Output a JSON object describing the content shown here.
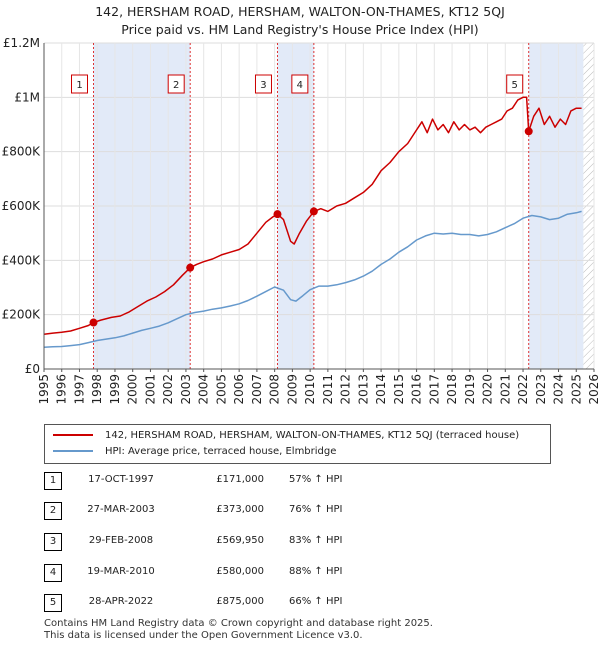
{
  "title": {
    "line1": "142, HERSHAM ROAD, HERSHAM, WALTON-ON-THAMES, KT12 5QJ",
    "line2": "Price paid vs. HM Land Registry's House Price Index (HPI)"
  },
  "chart_data": {
    "type": "line",
    "title": "142, HERSHAM ROAD, HERSHAM, WALTON-ON-THAMES, KT12 5QJ — Price paid vs. HM Land Registry's House Price Index (HPI)",
    "xlabel": "",
    "ylabel": "",
    "xlim": [
      1995,
      2026
    ],
    "ylim": [
      0,
      1200000
    ],
    "x_ticks": [
      "1995",
      "1996",
      "1997",
      "1998",
      "1999",
      "2000",
      "2001",
      "2002",
      "2003",
      "2004",
      "2005",
      "2006",
      "2007",
      "2008",
      "2009",
      "2010",
      "2011",
      "2012",
      "2013",
      "2014",
      "2015",
      "2016",
      "2017",
      "2018",
      "2019",
      "2020",
      "2021",
      "2022",
      "2023",
      "2024",
      "2025",
      "2026"
    ],
    "y_ticks": [
      {
        "value": 0,
        "label": "£0"
      },
      {
        "value": 200000,
        "label": "£200K"
      },
      {
        "value": 400000,
        "label": "£400K"
      },
      {
        "value": 600000,
        "label": "£600K"
      },
      {
        "value": 800000,
        "label": "£800K"
      },
      {
        "value": 1000000,
        "label": "£1M"
      },
      {
        "value": 1200000,
        "label": "£1.2M"
      }
    ],
    "grid": true,
    "series": [
      {
        "name": "142, HERSHAM ROAD, HERSHAM, WALTON-ON-THAMES, KT12 5QJ (terraced house)",
        "color": "#cc0000",
        "points": [
          [
            1995.0,
            128000
          ],
          [
            1995.5,
            132000
          ],
          [
            1996.0,
            135000
          ],
          [
            1996.5,
            140000
          ],
          [
            1997.0,
            150000
          ],
          [
            1997.5,
            160000
          ],
          [
            1997.79,
            171000
          ],
          [
            1998.2,
            180000
          ],
          [
            1998.8,
            190000
          ],
          [
            1999.3,
            195000
          ],
          [
            1999.8,
            210000
          ],
          [
            2000.3,
            230000
          ],
          [
            2000.8,
            250000
          ],
          [
            2001.3,
            265000
          ],
          [
            2001.8,
            285000
          ],
          [
            2002.3,
            310000
          ],
          [
            2002.8,
            345000
          ],
          [
            2003.24,
            373000
          ],
          [
            2003.6,
            385000
          ],
          [
            2004.0,
            395000
          ],
          [
            2004.5,
            405000
          ],
          [
            2005.0,
            420000
          ],
          [
            2005.5,
            430000
          ],
          [
            2006.0,
            440000
          ],
          [
            2006.5,
            460000
          ],
          [
            2007.0,
            500000
          ],
          [
            2007.5,
            540000
          ],
          [
            2007.9,
            560000
          ],
          [
            2008.16,
            569950
          ],
          [
            2008.5,
            550000
          ],
          [
            2008.9,
            470000
          ],
          [
            2009.1,
            460000
          ],
          [
            2009.4,
            500000
          ],
          [
            2009.8,
            545000
          ],
          [
            2010.21,
            580000
          ],
          [
            2010.6,
            590000
          ],
          [
            2011.0,
            580000
          ],
          [
            2011.5,
            600000
          ],
          [
            2012.0,
            610000
          ],
          [
            2012.5,
            630000
          ],
          [
            2013.0,
            650000
          ],
          [
            2013.5,
            680000
          ],
          [
            2014.0,
            730000
          ],
          [
            2014.5,
            760000
          ],
          [
            2015.0,
            800000
          ],
          [
            2015.5,
            830000
          ],
          [
            2016.0,
            880000
          ],
          [
            2016.3,
            910000
          ],
          [
            2016.6,
            870000
          ],
          [
            2016.9,
            920000
          ],
          [
            2017.2,
            880000
          ],
          [
            2017.5,
            900000
          ],
          [
            2017.8,
            870000
          ],
          [
            2018.1,
            910000
          ],
          [
            2018.4,
            880000
          ],
          [
            2018.7,
            900000
          ],
          [
            2019.0,
            880000
          ],
          [
            2019.3,
            890000
          ],
          [
            2019.6,
            870000
          ],
          [
            2019.9,
            890000
          ],
          [
            2020.2,
            900000
          ],
          [
            2020.5,
            910000
          ],
          [
            2020.8,
            920000
          ],
          [
            2021.1,
            950000
          ],
          [
            2021.4,
            960000
          ],
          [
            2021.7,
            990000
          ],
          [
            2022.0,
            1000000
          ],
          [
            2022.2,
            1000000
          ],
          [
            2022.32,
            875000
          ],
          [
            2022.6,
            930000
          ],
          [
            2022.9,
            960000
          ],
          [
            2023.2,
            900000
          ],
          [
            2023.5,
            930000
          ],
          [
            2023.8,
            890000
          ],
          [
            2024.1,
            920000
          ],
          [
            2024.4,
            900000
          ],
          [
            2024.7,
            950000
          ],
          [
            2025.0,
            960000
          ],
          [
            2025.3,
            960000
          ]
        ]
      },
      {
        "name": "HPI: Average price, terraced house, Elmbridge",
        "color": "#6699cc",
        "points": [
          [
            1995.0,
            80000
          ],
          [
            1995.5,
            82000
          ],
          [
            1996.0,
            83000
          ],
          [
            1996.5,
            86000
          ],
          [
            1997.0,
            90000
          ],
          [
            1997.5,
            97000
          ],
          [
            1998.0,
            105000
          ],
          [
            1998.5,
            110000
          ],
          [
            1999.0,
            115000
          ],
          [
            1999.5,
            122000
          ],
          [
            2000.0,
            132000
          ],
          [
            2000.5,
            142000
          ],
          [
            2001.0,
            150000
          ],
          [
            2001.5,
            158000
          ],
          [
            2002.0,
            170000
          ],
          [
            2002.5,
            185000
          ],
          [
            2003.0,
            200000
          ],
          [
            2003.5,
            208000
          ],
          [
            2004.0,
            213000
          ],
          [
            2004.5,
            220000
          ],
          [
            2005.0,
            225000
          ],
          [
            2005.5,
            232000
          ],
          [
            2006.0,
            240000
          ],
          [
            2006.5,
            252000
          ],
          [
            2007.0,
            268000
          ],
          [
            2007.5,
            285000
          ],
          [
            2008.0,
            302000
          ],
          [
            2008.5,
            290000
          ],
          [
            2008.9,
            255000
          ],
          [
            2009.2,
            250000
          ],
          [
            2009.6,
            270000
          ],
          [
            2010.0,
            292000
          ],
          [
            2010.5,
            305000
          ],
          [
            2011.0,
            305000
          ],
          [
            2011.5,
            310000
          ],
          [
            2012.0,
            318000
          ],
          [
            2012.5,
            328000
          ],
          [
            2013.0,
            342000
          ],
          [
            2013.5,
            360000
          ],
          [
            2014.0,
            385000
          ],
          [
            2014.5,
            405000
          ],
          [
            2015.0,
            430000
          ],
          [
            2015.5,
            450000
          ],
          [
            2016.0,
            475000
          ],
          [
            2016.5,
            490000
          ],
          [
            2017.0,
            500000
          ],
          [
            2017.5,
            497000
          ],
          [
            2018.0,
            500000
          ],
          [
            2018.5,
            495000
          ],
          [
            2019.0,
            495000
          ],
          [
            2019.5,
            490000
          ],
          [
            2020.0,
            495000
          ],
          [
            2020.5,
            505000
          ],
          [
            2021.0,
            520000
          ],
          [
            2021.5,
            535000
          ],
          [
            2022.0,
            555000
          ],
          [
            2022.5,
            565000
          ],
          [
            2023.0,
            560000
          ],
          [
            2023.5,
            550000
          ],
          [
            2024.0,
            555000
          ],
          [
            2024.5,
            570000
          ],
          [
            2025.0,
            575000
          ],
          [
            2025.3,
            580000
          ]
        ]
      }
    ],
    "annotations": [
      {
        "id": "1",
        "x": 1997.79,
        "value": 171000
      },
      {
        "id": "2",
        "x": 2003.24,
        "value": 373000
      },
      {
        "id": "3",
        "x": 2008.16,
        "value": 569950
      },
      {
        "id": "4",
        "x": 2010.21,
        "value": 580000
      },
      {
        "id": "5",
        "x": 2022.32,
        "value": 875000
      }
    ],
    "shaded_regions": [
      [
        1997.79,
        2003.24
      ],
      [
        2008.16,
        2010.21
      ],
      [
        2022.32,
        2025.4
      ]
    ],
    "hatched_region": [
      2025.4,
      2026
    ]
  },
  "legend": [
    {
      "label": "142, HERSHAM ROAD, HERSHAM, WALTON-ON-THAMES, KT12 5QJ (terraced house)",
      "color": "#cc0000"
    },
    {
      "label": "HPI: Average price, terraced house, Elmbridge",
      "color": "#6699cc"
    }
  ],
  "sales": [
    {
      "id": "1",
      "date": "17-OCT-1997",
      "price": "£171,000",
      "hpi": "57% ↑ HPI"
    },
    {
      "id": "2",
      "date": "27-MAR-2003",
      "price": "£373,000",
      "hpi": "76% ↑ HPI"
    },
    {
      "id": "3",
      "date": "29-FEB-2008",
      "price": "£569,950",
      "hpi": "83% ↑ HPI"
    },
    {
      "id": "4",
      "date": "19-MAR-2010",
      "price": "£580,000",
      "hpi": "88% ↑ HPI"
    },
    {
      "id": "5",
      "date": "28-APR-2022",
      "price": "£875,000",
      "hpi": "66% ↑ HPI"
    }
  ],
  "footer": {
    "line1": "Contains HM Land Registry data © Crown copyright and database right 2025.",
    "line2": "This data is licensed under the Open Government Licence v3.0."
  }
}
